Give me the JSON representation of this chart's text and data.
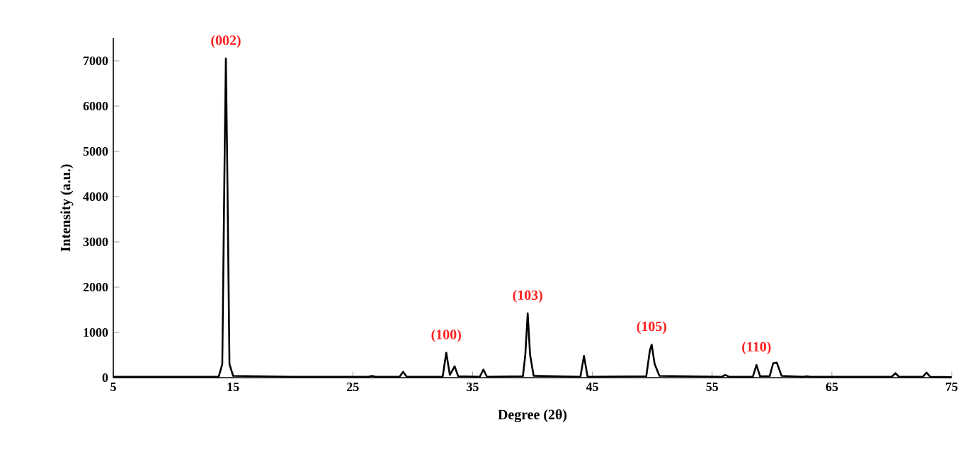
{
  "chart_data": {
    "type": "line",
    "xlabel": "Degree (2θ)",
    "ylabel": "Intensity (a.u.)",
    "x": [
      5,
      10,
      13.8,
      14.1,
      14.3,
      14.4,
      14.5,
      14.7,
      15.0,
      20,
      26.3,
      26.6,
      26.9,
      28.9,
      29.2,
      29.5,
      32.5,
      32.8,
      33.1,
      33.5,
      33.8,
      35.6,
      35.9,
      36.2,
      39.2,
      39.4,
      39.6,
      39.8,
      40.1,
      44.0,
      44.3,
      44.6,
      49.5,
      49.8,
      49.95,
      50.2,
      50.6,
      55.8,
      56.1,
      56.4,
      58.4,
      58.7,
      59.0,
      59.8,
      60.1,
      60.4,
      60.8,
      62.6,
      62.9,
      63.2,
      70.0,
      70.3,
      70.6,
      72.6,
      72.9,
      73.2,
      75
    ],
    "series": [
      {
        "color": "#000000",
        "values": [
          20,
          20,
          20,
          300,
          5000,
          7050,
          5000,
          300,
          40,
          20,
          20,
          40,
          20,
          20,
          130,
          20,
          20,
          550,
          60,
          250,
          30,
          20,
          180,
          20,
          30,
          500,
          1420,
          500,
          40,
          20,
          480,
          20,
          30,
          600,
          730,
          300,
          40,
          20,
          60,
          20,
          20,
          280,
          30,
          30,
          320,
          330,
          40,
          20,
          30,
          20,
          20,
          100,
          20,
          20,
          110,
          20,
          10
        ]
      }
    ],
    "xlim": [
      5,
      75
    ],
    "xticks": [
      5,
      15,
      25,
      35,
      45,
      55,
      65,
      75
    ],
    "ylim": [
      0,
      7500
    ],
    "yticks": [
      0,
      1000,
      2000,
      3000,
      4000,
      5000,
      6000,
      7000
    ],
    "grid": false,
    "marker": "none",
    "line_style": "solid",
    "annotations": [
      {
        "text": "(002)",
        "x": 14.4,
        "y": 7050
      },
      {
        "text": "(100)",
        "x": 32.8,
        "y": 550
      },
      {
        "text": "(103)",
        "x": 39.6,
        "y": 1420
      },
      {
        "text": "(105)",
        "x": 49.95,
        "y": 730
      },
      {
        "text": "(110)",
        "x": 58.7,
        "y": 280
      }
    ]
  }
}
